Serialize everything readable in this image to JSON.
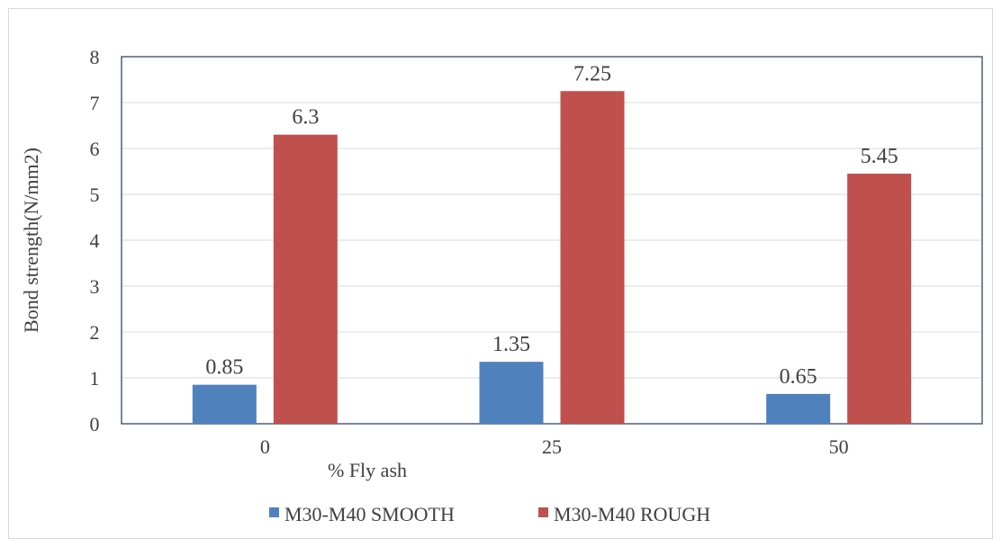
{
  "chart_data": {
    "type": "bar",
    "title": "",
    "xlabel": "% Fly ash",
    "ylabel": "Bond strength(N/mm2)",
    "categories": [
      "0",
      "25",
      "50"
    ],
    "series": [
      {
        "name": "M30-M40 SMOOTH",
        "color": "#4f81bd",
        "values": [
          0.85,
          1.35,
          0.65
        ],
        "labels": [
          "0.85",
          "1.35",
          "0.65"
        ]
      },
      {
        "name": "M30-M40 ROUGH",
        "color": "#c0504d",
        "values": [
          6.3,
          7.25,
          5.45
        ],
        "labels": [
          "6.3",
          "7.25",
          "5.45"
        ]
      }
    ],
    "ylim": [
      0,
      8
    ],
    "yticks": [
      "0",
      "1",
      "2",
      "3",
      "4",
      "5",
      "6",
      "7",
      "8"
    ],
    "grid": true,
    "legend_position": "bottom"
  }
}
